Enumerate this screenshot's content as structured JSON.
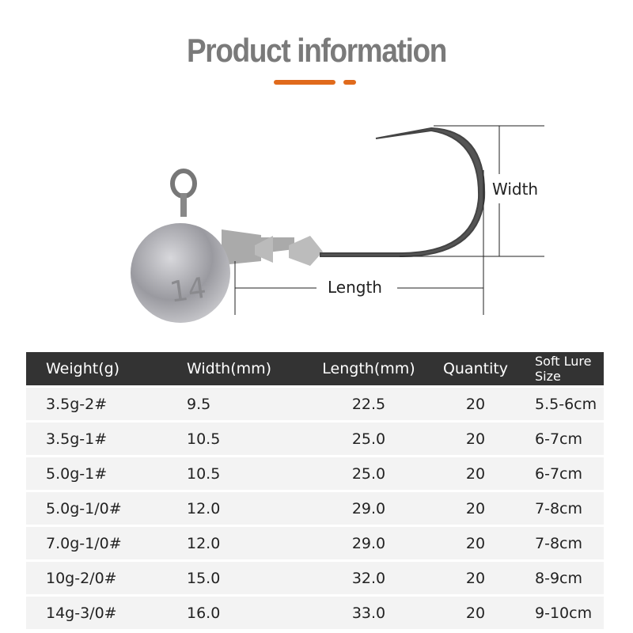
{
  "title": "Product information",
  "accent_color": "#e06a1c",
  "diagram": {
    "width_label": "Width",
    "length_label": "Length",
    "head_marking": "14"
  },
  "table": {
    "headers": [
      "Weight(g)",
      "Width(mm)",
      "Length(mm)",
      "Quantity",
      "Soft Lure Size"
    ],
    "rows": [
      [
        "3.5g-2#",
        "9.5",
        "22.5",
        "20",
        "5.5-6cm"
      ],
      [
        "3.5g-1#",
        "10.5",
        "25.0",
        "20",
        "6-7cm"
      ],
      [
        "5.0g-1#",
        "10.5",
        "25.0",
        "20",
        "6-7cm"
      ],
      [
        "5.0g-1/0#",
        "12.0",
        "29.0",
        "20",
        "7-8cm"
      ],
      [
        "7.0g-1/0#",
        "12.0",
        "29.0",
        "20",
        "7-8cm"
      ],
      [
        "10g-2/0#",
        "15.0",
        "32.0",
        "20",
        "8-9cm"
      ],
      [
        "14g-3/0#",
        "16.0",
        "33.0",
        "20",
        "9-10cm"
      ]
    ]
  }
}
